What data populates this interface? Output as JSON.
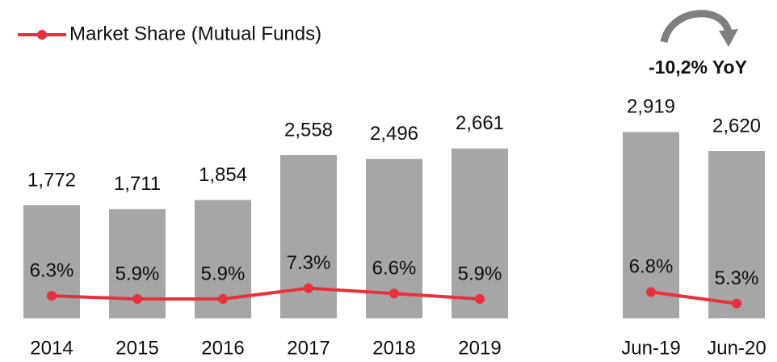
{
  "chart_data": {
    "type": "bar",
    "categories": [
      "2014",
      "2015",
      "2016",
      "2017",
      "2018",
      "2019",
      null,
      "Jun-19",
      "Jun-20"
    ],
    "ylim": [
      0,
      3000
    ],
    "y2lim": [
      0,
      10
    ],
    "series": [
      {
        "name": null,
        "type": "bar",
        "color": "#a6a6a6",
        "values": [
          1772,
          1711,
          1854,
          2558,
          2496,
          2661,
          null,
          2919,
          2620
        ],
        "value_labels": [
          "1,772",
          "1,711",
          "1,854",
          "2,558",
          "2,496",
          "2,661",
          null,
          "2,919",
          "2,620"
        ]
      },
      {
        "name": "Market Share (Mutual Funds)",
        "type": "line",
        "axis": "y2",
        "color": "#e8303e",
        "values": [
          6.3,
          5.9,
          5.9,
          7.3,
          6.6,
          5.9,
          null,
          6.8,
          5.3
        ],
        "value_labels": [
          "6.3%",
          "5.9%",
          "5.9%",
          "7.3%",
          "6.6%",
          "5.9%",
          null,
          "6.8%",
          "5.3%"
        ]
      }
    ],
    "annotation": "-10,2% YoY",
    "legend": "top-left"
  }
}
